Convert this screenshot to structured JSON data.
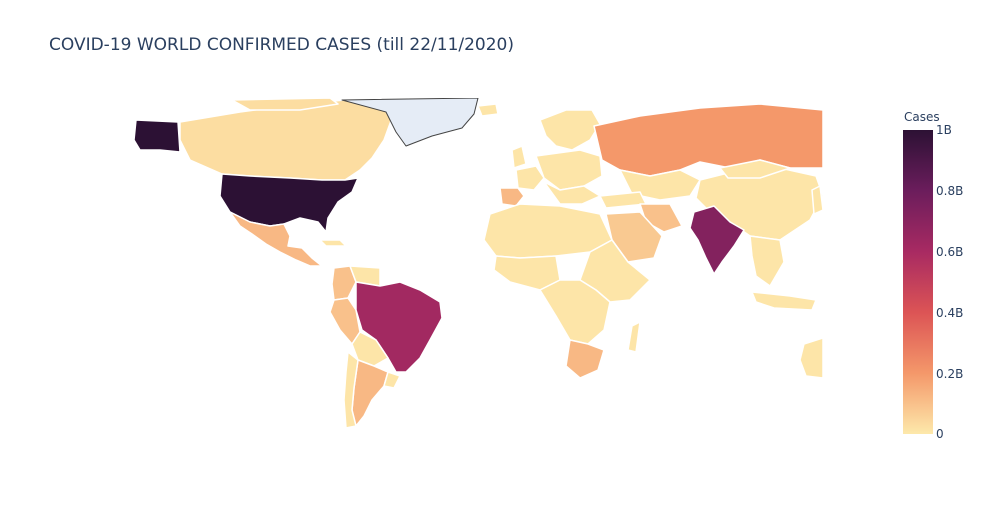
{
  "title": "COVID-19 WORLD CONFIRMED CASES (till 22/11/2020)",
  "colorbar": {
    "title": "Cases",
    "ticks": [
      "1B",
      "0.8B",
      "0.6B",
      "0.4B",
      "0.2B",
      "0"
    ],
    "colors": [
      "#2c1134",
      "#6b1d5c",
      "#a82a62",
      "#dc5455",
      "#f4986a",
      "#fde9ab"
    ]
  },
  "regions": [
    {
      "name": "United States",
      "level": 1.0
    },
    {
      "name": "Alaska",
      "level": 1.0
    },
    {
      "name": "India",
      "level": 0.72
    },
    {
      "name": "Brazil",
      "level": 0.62
    },
    {
      "name": "Russia",
      "level": 0.2
    },
    {
      "name": "Mexico",
      "level": 0.12
    },
    {
      "name": "Argentina",
      "level": 0.12
    },
    {
      "name": "Colombia",
      "level": 0.1
    },
    {
      "name": "Peru",
      "level": 0.1
    },
    {
      "name": "South Africa",
      "level": 0.12
    },
    {
      "name": "Spain",
      "level": 0.12
    },
    {
      "name": "Saudi Arabia",
      "level": 0.08
    },
    {
      "name": "Iran",
      "level": 0.1
    },
    {
      "name": "Canada",
      "level": 0.03
    },
    {
      "name": "China",
      "level": 0.01
    },
    {
      "name": "Greenland",
      "level": null
    }
  ]
}
